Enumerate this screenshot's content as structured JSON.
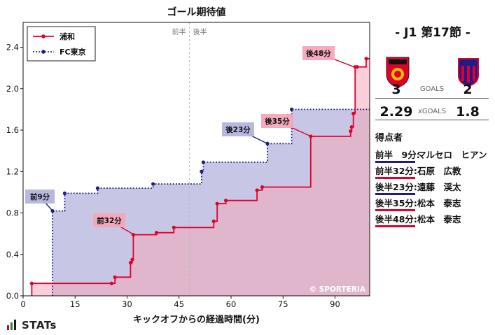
{
  "chart_data": {
    "type": "line",
    "title": "ゴール期待値",
    "xlabel": "キックオフからの経過時間(分)",
    "ylabel": "",
    "xlim": [
      0,
      100
    ],
    "ylim": [
      0,
      2.64
    ],
    "xticks": [
      0,
      15,
      30,
      45,
      60,
      75,
      90
    ],
    "yticks": [
      0.0,
      0.4,
      0.8,
      1.2,
      1.6,
      2.0,
      2.4
    ],
    "half_labels": [
      "前半",
      "後半"
    ],
    "half_line_x": 48,
    "legend_position": "top-left",
    "series": [
      {
        "name": "浦和",
        "color": "#e0002a",
        "fill": "#f4a7b9",
        "line_style": "solid",
        "x": [
          2.5,
          25.5,
          26.5,
          31,
          31.5,
          31.8,
          38.5,
          43.5,
          55,
          56,
          58.5,
          67.5,
          69,
          83,
          94.5,
          94.8,
          95.3,
          95.8,
          96.4,
          99,
          100
        ],
        "y": [
          0.12,
          0.12,
          0.18,
          0.32,
          0.35,
          0.59,
          0.61,
          0.66,
          0.72,
          0.89,
          0.92,
          1.02,
          1.05,
          1.54,
          1.59,
          1.63,
          1.76,
          2.21,
          2.21,
          2.29,
          2.29
        ]
      },
      {
        "name": "FC東京",
        "color": "#1c1c8c",
        "fill": "#b4b4dc",
        "line_style": "dotted",
        "x": [
          8.5,
          12,
          21.5,
          37.5,
          51.5,
          52,
          70.5,
          77.5,
          100
        ],
        "y": [
          0.82,
          0.99,
          1.04,
          1.08,
          1.2,
          1.29,
          1.47,
          1.8,
          1.8
        ]
      }
    ],
    "annotations": [
      {
        "text": "前半9分",
        "team": "FC東京",
        "x": 8.5,
        "y": 0.82
      },
      {
        "text": "前半32分",
        "team": "浦和",
        "x": 31.5,
        "y": 0.6
      },
      {
        "text": "後半23分",
        "team": "FC東京",
        "x": 70.5,
        "y": 1.47
      },
      {
        "text": "後半35分",
        "team": "浦和",
        "x": 83,
        "y": 1.54
      },
      {
        "text": "後半48分",
        "team": "浦和",
        "x": 95.5,
        "y": 2.21
      }
    ],
    "annotation_labels": [
      {
        "text": "前9分",
        "at": "前半9分"
      },
      {
        "text": "前32分",
        "at": "前半32分"
      },
      {
        "text": "後23分",
        "at": "後半23分"
      },
      {
        "text": "後35分",
        "at": "後半35分"
      },
      {
        "text": "後48分",
        "at": "後半48分"
      }
    ]
  },
  "watermark": "© SPORTERIA",
  "brand": {
    "text": "STATs",
    "colors": [
      "#e0002a",
      "#2a8a3a",
      "#1a1a1a"
    ]
  },
  "match": {
    "title": "-  J1 第17節  -",
    "home_color": "#e0002a",
    "away_color": "#1c1c8c",
    "home_goals": "3",
    "away_goals": "2",
    "goals_label": "GOALS",
    "home_xg": "2.29",
    "away_xg": "1.8",
    "xg_label": "xGOALS"
  },
  "scorers_title": "得点者",
  "scorers": [
    {
      "time": "前半　9分:",
      "name": "マルセロ　ヒアン",
      "team_color": "#1c1c8c"
    },
    {
      "time": "前半32分:",
      "name": "石原　広教",
      "team_color": "#e0002a"
    },
    {
      "time": "後半23分:",
      "name": "遠藤　渓太",
      "team_color": "#1c1c8c"
    },
    {
      "time": "後半35分:",
      "name": "松本　泰志",
      "team_color": "#e0002a"
    },
    {
      "time": "後半48分:",
      "name": "松本　泰志",
      "team_color": "#e0002a"
    }
  ]
}
